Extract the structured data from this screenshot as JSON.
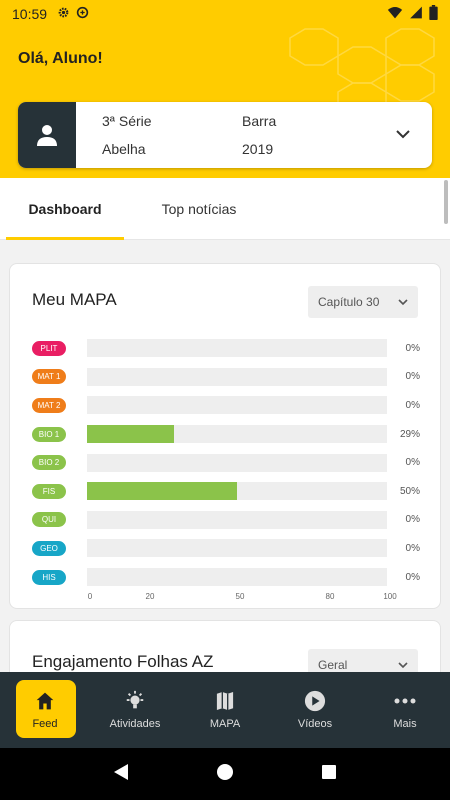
{
  "status_bar": {
    "time": "10:59"
  },
  "greeting": "Olá, Aluno!",
  "student": {
    "grade": "3ª Série",
    "unit": "Barra",
    "class_name": "Abelha",
    "year": "2019"
  },
  "tabs": [
    {
      "label": "Dashboard",
      "active": true
    },
    {
      "label": "Top notícias",
      "active": false
    }
  ],
  "mapa_card": {
    "title": "Meu MAPA",
    "selector": "Capítulo 30",
    "chart_data": {
      "type": "bar",
      "orientation": "horizontal",
      "categories": [
        "PLIT",
        "MAT 1",
        "MAT 2",
        "BIO 1",
        "BIO 2",
        "FIS",
        "QUI",
        "GEO",
        "HIS"
      ],
      "values": [
        0,
        0,
        0,
        29,
        0,
        50,
        0,
        0,
        0
      ],
      "value_labels": [
        "0%",
        "0%",
        "0%",
        "29%",
        "0%",
        "50%",
        "0%",
        "0%",
        "0%"
      ],
      "category_colors": [
        "#e91e63",
        "#ef7d1a",
        "#ef7d1a",
        "#8bc34a",
        "#8bc34a",
        "#8bc34a",
        "#8bc34a",
        "#17a6c7",
        "#17a6c7"
      ],
      "bar_color": "#8bc34a",
      "xlim": [
        0,
        100
      ],
      "xticks": [
        "0",
        "20",
        "50",
        "80",
        "100"
      ],
      "title": "",
      "xlabel": "",
      "ylabel": ""
    }
  },
  "engagement_card": {
    "title": "Engajamento Folhas AZ",
    "selector": "Geral"
  },
  "bottom_nav": [
    {
      "label": "Feed",
      "icon": "home-icon",
      "active": true
    },
    {
      "label": "Atividades",
      "icon": "lightbulb-icon",
      "active": false
    },
    {
      "label": "MAPA",
      "icon": "map-icon",
      "active": false
    },
    {
      "label": "Vídeos",
      "icon": "play-icon",
      "active": false
    },
    {
      "label": "Mais",
      "icon": "more-dots-icon",
      "active": false
    }
  ],
  "colors": {
    "accent": "#ffcc00",
    "nav_bg": "#263238",
    "chart_green": "#8bc34a"
  }
}
